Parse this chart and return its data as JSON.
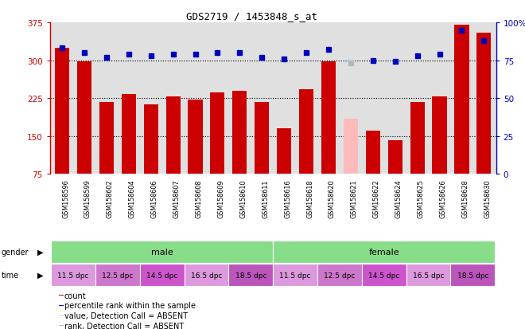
{
  "title": "GDS2719 / 1453848_s_at",
  "samples": [
    "GSM158596",
    "GSM158599",
    "GSM158602",
    "GSM158604",
    "GSM158606",
    "GSM158607",
    "GSM158608",
    "GSM158609",
    "GSM158610",
    "GSM158611",
    "GSM158616",
    "GSM158618",
    "GSM158620",
    "GSM158621",
    "GSM158622",
    "GSM158624",
    "GSM158625",
    "GSM158626",
    "GSM158628",
    "GSM158630"
  ],
  "bar_values": [
    325,
    297,
    218,
    233,
    213,
    228,
    222,
    237,
    240,
    218,
    165,
    243,
    297,
    185,
    160,
    142,
    218,
    228,
    370,
    355
  ],
  "bar_absent": [
    false,
    false,
    false,
    false,
    false,
    false,
    false,
    false,
    false,
    false,
    false,
    false,
    false,
    true,
    false,
    false,
    false,
    false,
    false,
    false
  ],
  "rank_values": [
    83,
    80,
    77,
    79,
    78,
    79,
    79,
    80,
    80,
    77,
    76,
    80,
    82,
    73,
    75,
    74,
    78,
    79,
    95,
    88
  ],
  "rank_absent": [
    false,
    false,
    false,
    false,
    false,
    false,
    false,
    false,
    false,
    false,
    false,
    false,
    false,
    true,
    false,
    false,
    false,
    false,
    false,
    false
  ],
  "ylim_left": [
    75,
    375
  ],
  "ylim_right": [
    0,
    100
  ],
  "yticks_left": [
    75,
    150,
    225,
    300,
    375
  ],
  "yticks_right": [
    0,
    25,
    50,
    75,
    100
  ],
  "grid_values": [
    150,
    225,
    300
  ],
  "bar_color": "#cc0000",
  "bar_absent_color": "#ffbbbb",
  "rank_color": "#0000bb",
  "rank_absent_color": "#aabbcc",
  "bg_color": "#ffffff",
  "plot_bg": "#e0e0e0",
  "gender_color": "#88dd88",
  "time_colors_cycle": [
    "#dd99dd",
    "#cc77cc",
    "#cc55cc",
    "#dd99dd",
    "#bb55bb"
  ],
  "time_labels": [
    "11.5 dpc",
    "12.5 dpc",
    "14.5 dpc",
    "16.5 dpc",
    "18.5 dpc",
    "11.5 dpc",
    "12.5 dpc",
    "14.5 dpc",
    "16.5 dpc",
    "18.5 dpc"
  ],
  "legend_items": [
    {
      "color": "#cc0000",
      "label": "count"
    },
    {
      "color": "#0000bb",
      "label": "percentile rank within the sample"
    },
    {
      "color": "#ffbbbb",
      "label": "value, Detection Call = ABSENT"
    },
    {
      "color": "#aabbcc",
      "label": "rank, Detection Call = ABSENT"
    }
  ]
}
